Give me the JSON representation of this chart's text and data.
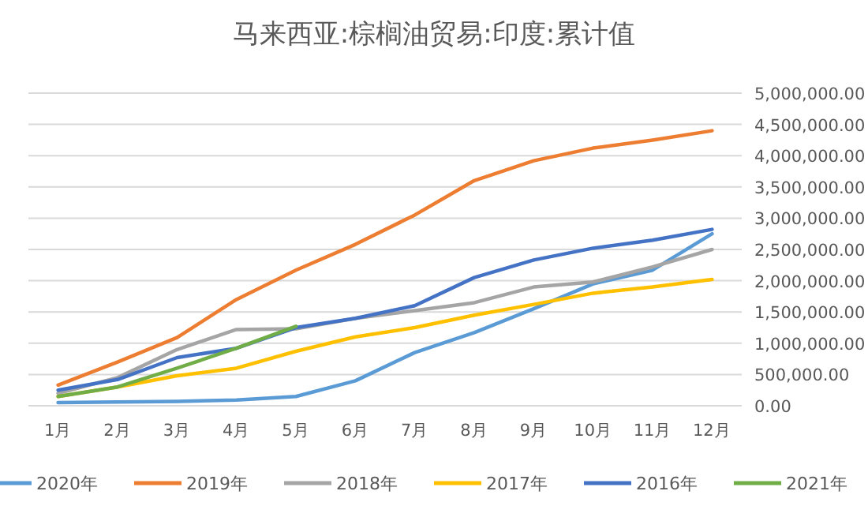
{
  "chart_data": {
    "type": "line",
    "title": "马来西亚:棕榈油贸易:印度:累计值",
    "categories": [
      "1月",
      "2月",
      "3月",
      "4月",
      "5月",
      "6月",
      "7月",
      "8月",
      "9月",
      "10月",
      "11月",
      "12月"
    ],
    "series": [
      {
        "name": "2020年",
        "color": "#5b9bd5",
        "values": [
          50000,
          60000,
          70000,
          90000,
          150000,
          400000,
          850000,
          1170000,
          1550000,
          1950000,
          2170000,
          2750000
        ]
      },
      {
        "name": "2019年",
        "color": "#ed7d31",
        "values": [
          330000,
          700000,
          1090000,
          1700000,
          2170000,
          2580000,
          3050000,
          3600000,
          3920000,
          4120000,
          4250000,
          4400000
        ]
      },
      {
        "name": "2018年",
        "color": "#a5a5a5",
        "values": [
          200000,
          450000,
          900000,
          1220000,
          1230000,
          1400000,
          1520000,
          1650000,
          1900000,
          1980000,
          2220000,
          2500000
        ]
      },
      {
        "name": "2017年",
        "color": "#ffc000",
        "values": [
          150000,
          300000,
          480000,
          600000,
          870000,
          1100000,
          1250000,
          1450000,
          1620000,
          1800000,
          1900000,
          2020000
        ]
      },
      {
        "name": "2016年",
        "color": "#4472c4",
        "values": [
          250000,
          420000,
          770000,
          920000,
          1250000,
          1400000,
          1600000,
          2050000,
          2330000,
          2520000,
          2650000,
          2820000
        ]
      },
      {
        "name": "2021年",
        "color": "#70ad47",
        "values": [
          150000,
          300000,
          600000,
          920000,
          1270000,
          null,
          null,
          null,
          null,
          null,
          null,
          null
        ]
      }
    ],
    "ylim": [
      0,
      5000000
    ],
    "yticks": [
      {
        "value": 0,
        "label": "0.00"
      },
      {
        "value": 500000,
        "label": "500,000.00"
      },
      {
        "value": 1000000,
        "label": "1,000,000.00"
      },
      {
        "value": 1500000,
        "label": "1,500,000.00"
      },
      {
        "value": 2000000,
        "label": "2,000,000.00"
      },
      {
        "value": 2500000,
        "label": "2,500,000.00"
      },
      {
        "value": 3000000,
        "label": "3,000,000.00"
      },
      {
        "value": 3500000,
        "label": "3,500,000.00"
      },
      {
        "value": 4000000,
        "label": "4,000,000.00"
      },
      {
        "value": 4500000,
        "label": "4,500,000.00"
      },
      {
        "value": 5000000,
        "label": "5,000,000.00"
      }
    ],
    "grid": "y",
    "legend": "bottom"
  }
}
